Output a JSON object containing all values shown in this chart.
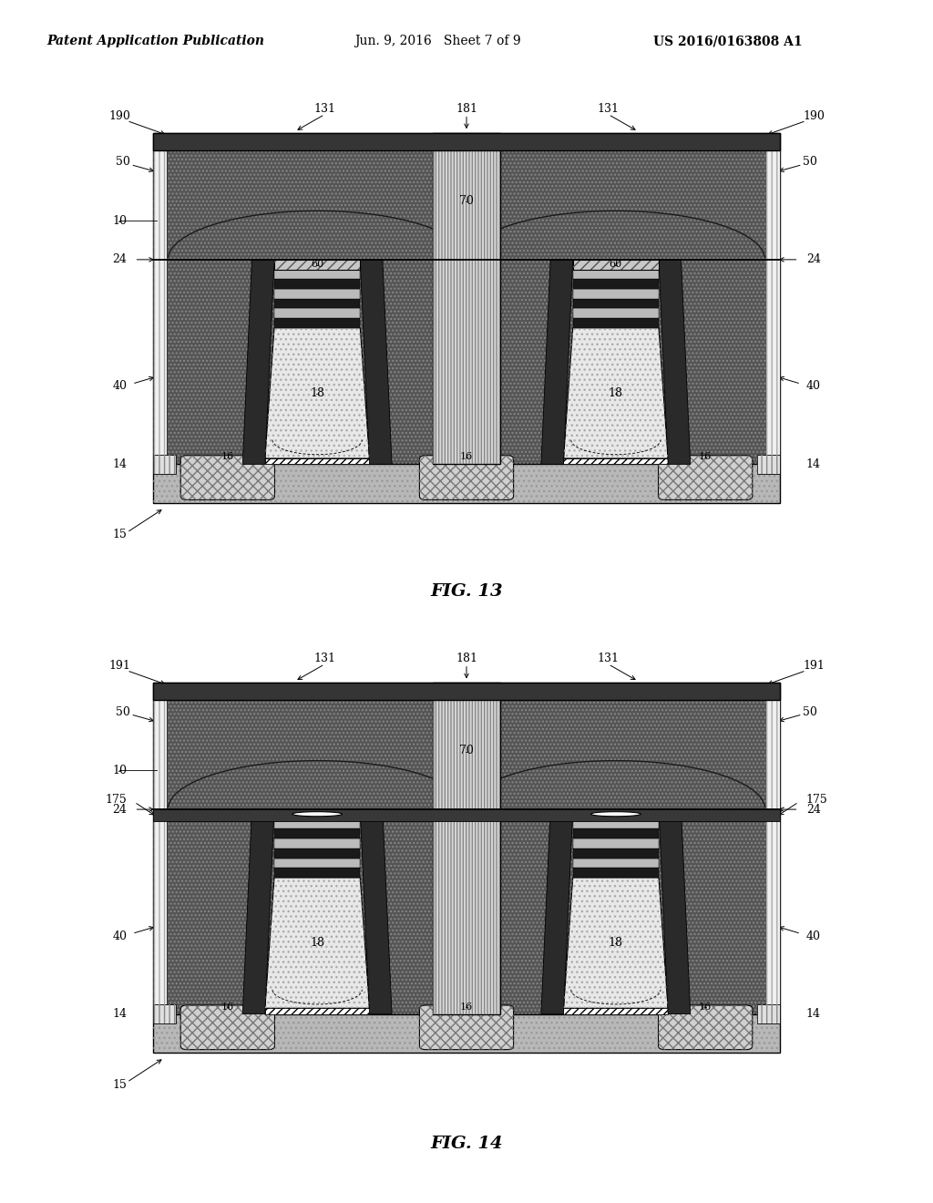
{
  "page_header_left": "Patent Application Publication",
  "page_header_center": "Jun. 9, 2016   Sheet 7 of 9",
  "page_header_right": "US 2016/0163808 A1",
  "fig13_title": "FIG. 13",
  "fig14_title": "FIG. 14",
  "bg": "#ffffff",
  "dark_ild": "#555555",
  "poly_color": "#e8e8e8",
  "stripe_dark": "#1a1a1a",
  "stripe_light": "#bbbbbb",
  "cap_color": "#c8c8c8",
  "substrate_color": "#b8b8b8",
  "center_fill": "#d8d8d8",
  "spacer_color": "#2a2a2a",
  "top_layer_color": "#353535",
  "sti_color": "#d0d0d0",
  "liner_color": "#f0f0f0"
}
